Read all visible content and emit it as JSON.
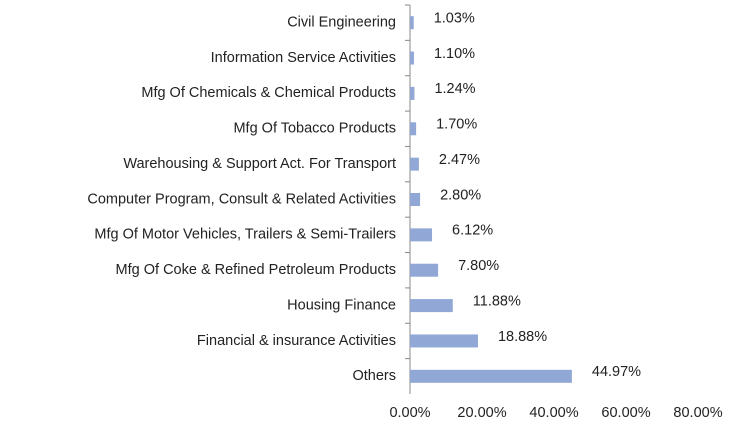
{
  "chart_data": {
    "type": "hbar",
    "categories": [
      "Civil Engineering",
      "Information Service Activities",
      "Mfg Of Chemicals & Chemical Products",
      "Mfg Of Tobacco Products",
      "Warehousing & Support Act. For Transport",
      "Computer Program, Consult & Related Activities",
      "Mfg Of Motor Vehicles, Trailers & Semi-Trailers",
      "Mfg Of Coke & Refined Petroleum Products",
      "Housing Finance",
      "Financial & insurance Activities",
      "Others"
    ],
    "values": [
      1.03,
      1.1,
      1.24,
      1.7,
      2.47,
      2.8,
      6.12,
      7.8,
      11.88,
      18.88,
      44.97
    ],
    "value_labels": [
      "1.03%",
      "1.10%",
      "1.24%",
      "1.70%",
      "2.47%",
      "2.80%",
      "6.12%",
      "7.80%",
      "11.88%",
      "18.88%",
      "44.97%"
    ],
    "color": "#91a7d6",
    "xlim": [
      0,
      80
    ],
    "xticks": [
      {
        "value": 0,
        "label": "0.00%"
      },
      {
        "value": 20,
        "label": "20.00%"
      },
      {
        "value": 40,
        "label": "40.00%"
      },
      {
        "value": 60,
        "label": "60.00%"
      },
      {
        "value": 80,
        "label": "80.00%"
      }
    ],
    "grid": false
  }
}
